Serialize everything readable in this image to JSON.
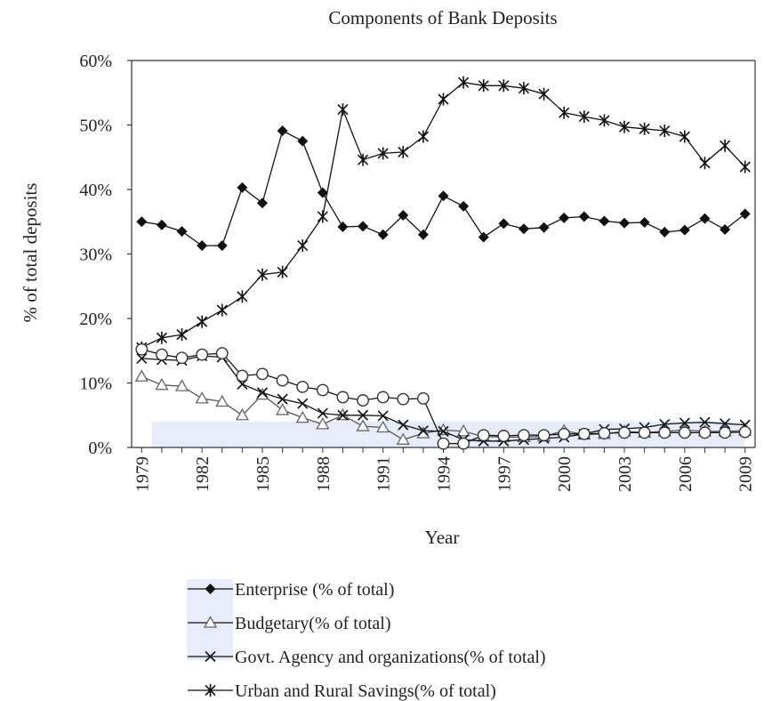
{
  "chart_data": {
    "type": "line",
    "title": "Components of Bank Deposits",
    "xlabel": "Year",
    "ylabel": "% of total deposits",
    "ylim": [
      0,
      60
    ],
    "xlim": [
      1979,
      2009
    ],
    "yticks": [
      0,
      10,
      20,
      30,
      40,
      50,
      60
    ],
    "ytick_labels": [
      "0%",
      "10%",
      "20%",
      "30%",
      "40%",
      "50%",
      "60%"
    ],
    "xticks": [
      1979,
      1982,
      1985,
      1988,
      1991,
      1994,
      1997,
      2000,
      2003,
      2006,
      2009
    ],
    "xtick_labels": [
      "1979",
      "1982",
      "1985",
      "1988",
      "1991",
      "1994",
      "1997",
      "2000",
      "2003",
      "2006",
      "2009"
    ],
    "grid": false,
    "legend_position": "bottom",
    "x": [
      1979,
      1980,
      1981,
      1982,
      1983,
      1984,
      1985,
      1986,
      1987,
      1988,
      1989,
      1990,
      1991,
      1992,
      1993,
      1994,
      1995,
      1996,
      1997,
      1998,
      1999,
      2000,
      2001,
      2002,
      2003,
      2004,
      2005,
      2006,
      2007,
      2008,
      2009
    ],
    "series": [
      {
        "name": "Enterprise (% of total)",
        "marker": "diamond",
        "values": [
          35,
          34.5,
          33.5,
          31.3,
          31.3,
          40.3,
          37.9,
          49.1,
          47.5,
          39.5,
          34.2,
          34.3,
          33,
          36,
          33,
          39,
          37.4,
          32.6,
          34.7,
          33.9,
          34.1,
          35.6,
          35.8,
          35.1,
          34.8,
          34.9,
          33.4,
          33.7,
          35.5,
          33.8,
          36.2
        ]
      },
      {
        "name": "Budgetary(% of total)",
        "marker": "triangle",
        "values": [
          11,
          9.7,
          9.5,
          7.6,
          7.1,
          5,
          8.2,
          5.8,
          4.6,
          3.6,
          5,
          3.3,
          3.1,
          1.2,
          2.2,
          2.7,
          2.5,
          1.7,
          1.6,
          1.6,
          1.7,
          2.6,
          2,
          2.1,
          2.5,
          2.3,
          2.5,
          2.7,
          2.5,
          2.5,
          2.6
        ]
      },
      {
        "name": "Govt. Agency and organizations(% of total)",
        "marker": "x",
        "values": [
          13.8,
          13.6,
          13.5,
          14.2,
          14,
          9.8,
          8.5,
          7.5,
          6.8,
          5.3,
          5,
          5,
          4.9,
          3.5,
          2.6,
          2.5,
          1.2,
          1,
          1,
          1.2,
          1.4,
          1.6,
          2.1,
          2.8,
          2.9,
          3.1,
          3.6,
          3.8,
          3.9,
          3.7,
          3.5
        ]
      },
      {
        "name": "Urban and Rural Savings(% of total)",
        "marker": "asterisk",
        "values": [
          15.5,
          17,
          17.5,
          19.5,
          21.3,
          23.4,
          26.8,
          27.2,
          31.3,
          35.8,
          52.4,
          44.6,
          45.6,
          45.8,
          48.2,
          54,
          56.6,
          56.1,
          56.1,
          55.7,
          54.8,
          51.9,
          51.3,
          50.7,
          49.7,
          49.4,
          49.1,
          48.2,
          44.1,
          46.8,
          43.5
        ]
      },
      {
        "name": "",
        "marker": "circle",
        "values": [
          15.2,
          14.4,
          13.9,
          14.4,
          14.6,
          11.1,
          11.4,
          10.4,
          9.4,
          8.9,
          7.8,
          7.3,
          7.8,
          7.5,
          7.6,
          0.6,
          0.6,
          1.9,
          1.8,
          1.9,
          1.9,
          2.1,
          2.1,
          2.2,
          2.3,
          2.3,
          2.3,
          2.3,
          2.3,
          2.3,
          2.4
        ]
      }
    ],
    "legend": [
      {
        "label": "Enterprise (% of total)",
        "marker": "diamond"
      },
      {
        "label": "Budgetary(% of total)",
        "marker": "triangle"
      },
      {
        "label": "Govt. Agency and organizations(% of total)",
        "marker": "x"
      },
      {
        "label": "Urban and Rural Savings(% of total)",
        "marker": "asterisk"
      }
    ],
    "shaded_band": {
      "x": [
        1979.5,
        2009
      ],
      "y": [
        0,
        4
      ],
      "color": "#e8ecfa"
    },
    "line_color": "#111111"
  }
}
